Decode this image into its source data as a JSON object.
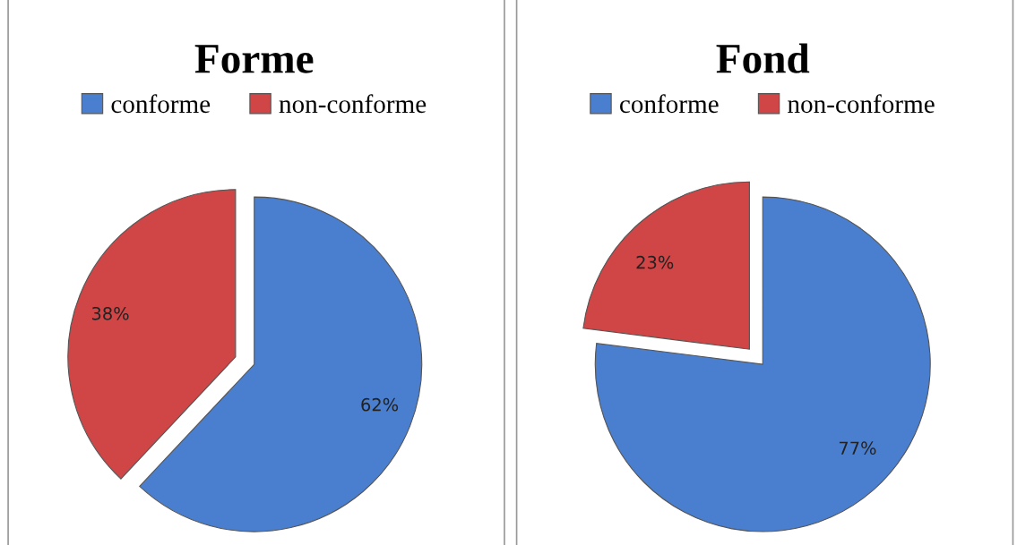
{
  "chart_data": [
    {
      "type": "pie",
      "title": "Forme",
      "categories": [
        "conforme",
        "non-conforme"
      ],
      "values": [
        62,
        38
      ],
      "colors": [
        "#4a7fd0",
        "#d04545"
      ],
      "data_labels": true,
      "value_labels": [
        "62%",
        "38%"
      ],
      "legend": "top"
    },
    {
      "type": "pie",
      "title": "Fond",
      "categories": [
        "conforme",
        "non-conforme"
      ],
      "values": [
        77,
        23
      ],
      "colors": [
        "#4a7fd0",
        "#d04545"
      ],
      "data_labels": true,
      "value_labels": [
        "77%",
        "23%"
      ],
      "legend": "top"
    }
  ]
}
